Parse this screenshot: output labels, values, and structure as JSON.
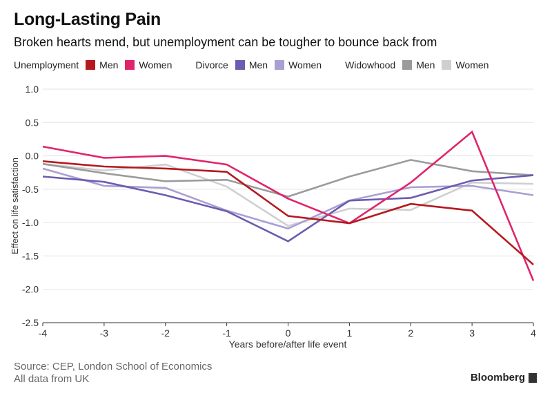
{
  "chart_data": {
    "type": "line",
    "title": "Long-Lasting Pain",
    "subtitle": "Broken hearts mend, but unemployment can be tougher to bounce back from",
    "xlabel": "Years before/after life event",
    "ylabel": "Effect on life satisfaction",
    "x": [
      -4,
      -3,
      -2,
      -1,
      0,
      1,
      2,
      3,
      4
    ],
    "x_ticks": [
      "-4",
      "-3",
      "-2",
      "-1",
      "0",
      "1",
      "2",
      "3",
      "4"
    ],
    "y_ticks": [
      "1.0",
      "0.5",
      "0.0",
      "-0.5",
      "-1.0",
      "-1.5",
      "-2.0",
      "-2.5"
    ],
    "xlim": [
      -4,
      4
    ],
    "ylim": [
      -2.5,
      1.0
    ],
    "grid": true,
    "legend_position": "top",
    "legend_groups": [
      {
        "label": "Unemployment",
        "items": [
          {
            "name": "Men",
            "color": "#b5191f"
          },
          {
            "name": "Women",
            "color": "#e0246b"
          }
        ]
      },
      {
        "label": "Divorce",
        "items": [
          {
            "name": "Men",
            "color": "#6e5bb0"
          },
          {
            "name": "Women",
            "color": "#a99fd3"
          }
        ]
      },
      {
        "label": "Widowhood",
        "items": [
          {
            "name": "Men",
            "color": "#9b9b9b"
          },
          {
            "name": "Women",
            "color": "#cfcfcf"
          }
        ]
      }
    ],
    "series": [
      {
        "group": "Widowhood",
        "name": "Women",
        "color": "#cfcfcf",
        "values": [
          -0.12,
          -0.22,
          -0.13,
          -0.46,
          -1.05,
          -0.79,
          -0.81,
          -0.4,
          -0.42
        ]
      },
      {
        "group": "Widowhood",
        "name": "Men",
        "color": "#9b9b9b",
        "values": [
          -0.12,
          -0.26,
          -0.38,
          -0.36,
          -0.61,
          -0.31,
          -0.06,
          -0.23,
          -0.29
        ]
      },
      {
        "group": "Divorce",
        "name": "Women",
        "color": "#a99fd3",
        "values": [
          -0.19,
          -0.45,
          -0.48,
          -0.82,
          -1.09,
          -0.67,
          -0.47,
          -0.45,
          -0.59
        ]
      },
      {
        "group": "Divorce",
        "name": "Men",
        "color": "#6e5bb0",
        "values": [
          -0.31,
          -0.39,
          -0.59,
          -0.83,
          -1.28,
          -0.67,
          -0.63,
          -0.37,
          -0.29
        ]
      },
      {
        "group": "Unemployment",
        "name": "Women",
        "color": "#e0246b",
        "values": [
          0.14,
          -0.03,
          0.0,
          -0.13,
          -0.64,
          -1.01,
          -0.4,
          0.36,
          -1.87
        ]
      },
      {
        "group": "Unemployment",
        "name": "Men",
        "color": "#b5191f",
        "values": [
          -0.08,
          -0.16,
          -0.19,
          -0.24,
          -0.9,
          -1.01,
          -0.72,
          -0.82,
          -1.63
        ]
      }
    ]
  },
  "footer": {
    "source": "Source: CEP, London School of Economics",
    "note": "All data from UK",
    "brand": "Bloomberg"
  }
}
